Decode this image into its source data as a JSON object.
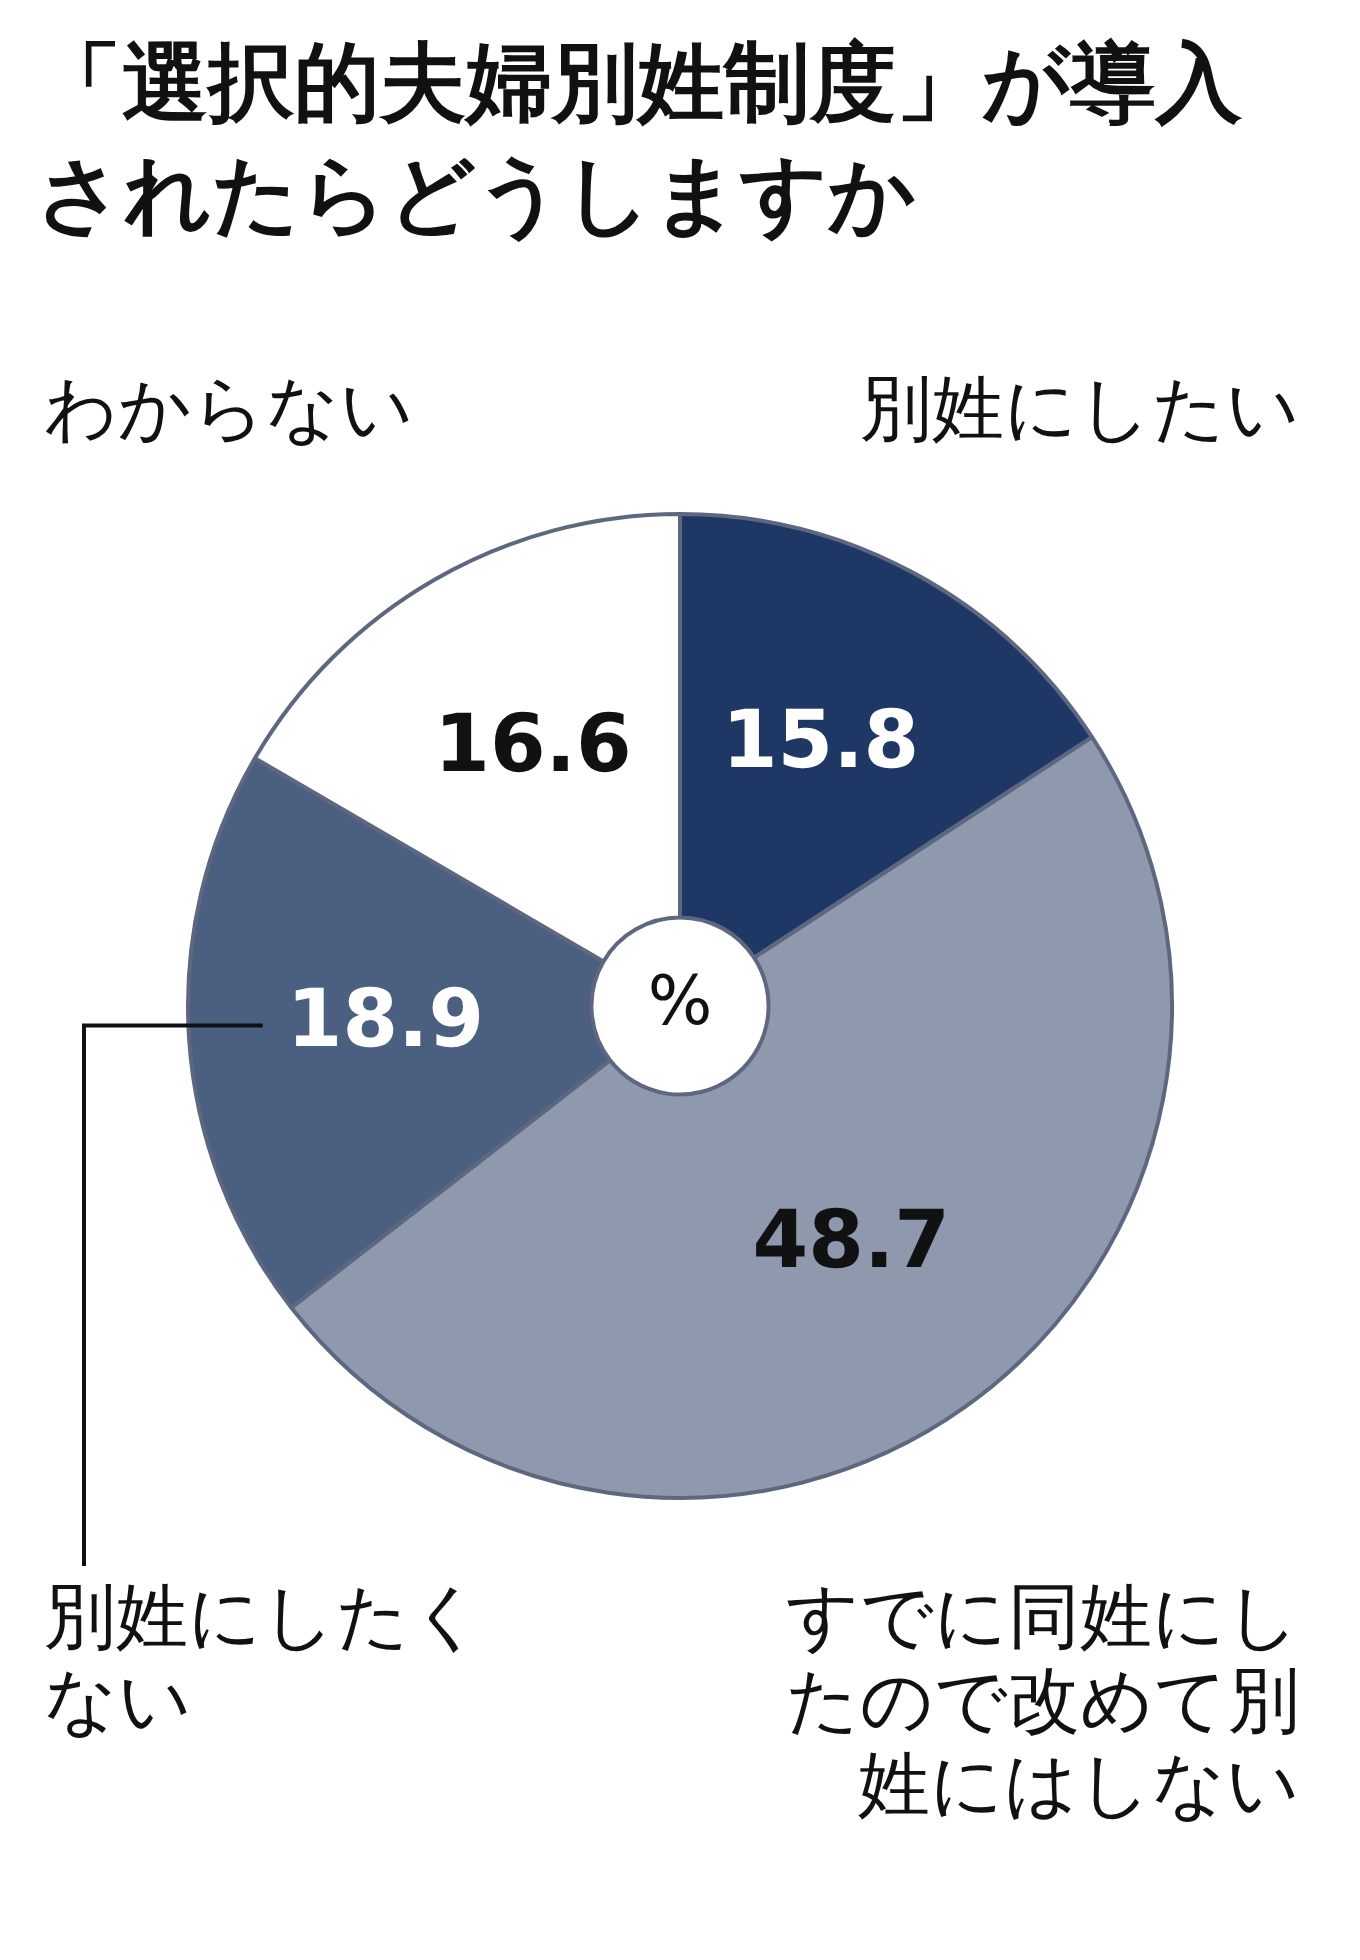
{
  "chart_data": {
    "type": "donut",
    "title": "「選択的夫婦別姓制度」が導入されたらどうしますか",
    "categories": [
      "別姓にしたい",
      "すでに同姓にしたので改めて別姓にはしない",
      "別姓にしたくない",
      "わからない"
    ],
    "values": [
      15.8,
      48.7,
      18.9,
      16.6
    ],
    "colors": [
      "#1e3765",
      "#8e99ae",
      "#4b5f80",
      "#ffffff"
    ],
    "data_labels": true,
    "annotations": [
      "%"
    ],
    "legend": false
  }
}
